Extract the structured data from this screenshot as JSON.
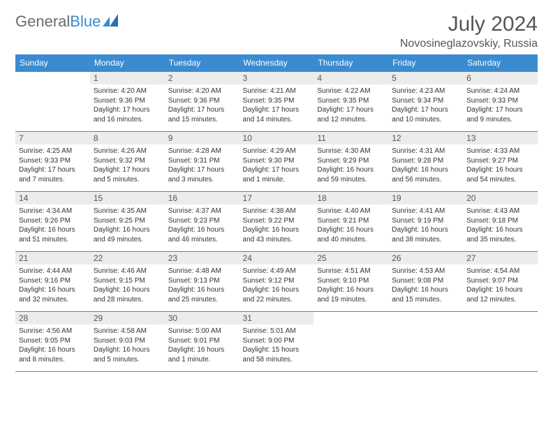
{
  "logo": {
    "text1": "General",
    "text2": "Blue"
  },
  "title": "July 2024",
  "location": "Novosineglazovskiy, Russia",
  "colors": {
    "header_bg": "#3a8bd0",
    "header_fg": "#ffffff",
    "daynum_bg": "#ececec",
    "text": "#333333",
    "border": "#3a8bd0",
    "logo_gray": "#6b6b6b",
    "logo_blue": "#3a8bd0"
  },
  "weekdays": [
    "Sunday",
    "Monday",
    "Tuesday",
    "Wednesday",
    "Thursday",
    "Friday",
    "Saturday"
  ],
  "weeks": [
    [
      null,
      {
        "n": "1",
        "sr": "4:20 AM",
        "ss": "9:36 PM",
        "dl": "17 hours and 16 minutes."
      },
      {
        "n": "2",
        "sr": "4:20 AM",
        "ss": "9:36 PM",
        "dl": "17 hours and 15 minutes."
      },
      {
        "n": "3",
        "sr": "4:21 AM",
        "ss": "9:35 PM",
        "dl": "17 hours and 14 minutes."
      },
      {
        "n": "4",
        "sr": "4:22 AM",
        "ss": "9:35 PM",
        "dl": "17 hours and 12 minutes."
      },
      {
        "n": "5",
        "sr": "4:23 AM",
        "ss": "9:34 PM",
        "dl": "17 hours and 10 minutes."
      },
      {
        "n": "6",
        "sr": "4:24 AM",
        "ss": "9:33 PM",
        "dl": "17 hours and 9 minutes."
      }
    ],
    [
      {
        "n": "7",
        "sr": "4:25 AM",
        "ss": "9:33 PM",
        "dl": "17 hours and 7 minutes."
      },
      {
        "n": "8",
        "sr": "4:26 AM",
        "ss": "9:32 PM",
        "dl": "17 hours and 5 minutes."
      },
      {
        "n": "9",
        "sr": "4:28 AM",
        "ss": "9:31 PM",
        "dl": "17 hours and 3 minutes."
      },
      {
        "n": "10",
        "sr": "4:29 AM",
        "ss": "9:30 PM",
        "dl": "17 hours and 1 minute."
      },
      {
        "n": "11",
        "sr": "4:30 AM",
        "ss": "9:29 PM",
        "dl": "16 hours and 59 minutes."
      },
      {
        "n": "12",
        "sr": "4:31 AM",
        "ss": "9:28 PM",
        "dl": "16 hours and 56 minutes."
      },
      {
        "n": "13",
        "sr": "4:33 AM",
        "ss": "9:27 PM",
        "dl": "16 hours and 54 minutes."
      }
    ],
    [
      {
        "n": "14",
        "sr": "4:34 AM",
        "ss": "9:26 PM",
        "dl": "16 hours and 51 minutes."
      },
      {
        "n": "15",
        "sr": "4:35 AM",
        "ss": "9:25 PM",
        "dl": "16 hours and 49 minutes."
      },
      {
        "n": "16",
        "sr": "4:37 AM",
        "ss": "9:23 PM",
        "dl": "16 hours and 46 minutes."
      },
      {
        "n": "17",
        "sr": "4:38 AM",
        "ss": "9:22 PM",
        "dl": "16 hours and 43 minutes."
      },
      {
        "n": "18",
        "sr": "4:40 AM",
        "ss": "9:21 PM",
        "dl": "16 hours and 40 minutes."
      },
      {
        "n": "19",
        "sr": "4:41 AM",
        "ss": "9:19 PM",
        "dl": "16 hours and 38 minutes."
      },
      {
        "n": "20",
        "sr": "4:43 AM",
        "ss": "9:18 PM",
        "dl": "16 hours and 35 minutes."
      }
    ],
    [
      {
        "n": "21",
        "sr": "4:44 AM",
        "ss": "9:16 PM",
        "dl": "16 hours and 32 minutes."
      },
      {
        "n": "22",
        "sr": "4:46 AM",
        "ss": "9:15 PM",
        "dl": "16 hours and 28 minutes."
      },
      {
        "n": "23",
        "sr": "4:48 AM",
        "ss": "9:13 PM",
        "dl": "16 hours and 25 minutes."
      },
      {
        "n": "24",
        "sr": "4:49 AM",
        "ss": "9:12 PM",
        "dl": "16 hours and 22 minutes."
      },
      {
        "n": "25",
        "sr": "4:51 AM",
        "ss": "9:10 PM",
        "dl": "16 hours and 19 minutes."
      },
      {
        "n": "26",
        "sr": "4:53 AM",
        "ss": "9:08 PM",
        "dl": "16 hours and 15 minutes."
      },
      {
        "n": "27",
        "sr": "4:54 AM",
        "ss": "9:07 PM",
        "dl": "16 hours and 12 minutes."
      }
    ],
    [
      {
        "n": "28",
        "sr": "4:56 AM",
        "ss": "9:05 PM",
        "dl": "16 hours and 8 minutes."
      },
      {
        "n": "29",
        "sr": "4:58 AM",
        "ss": "9:03 PM",
        "dl": "16 hours and 5 minutes."
      },
      {
        "n": "30",
        "sr": "5:00 AM",
        "ss": "9:01 PM",
        "dl": "16 hours and 1 minute."
      },
      {
        "n": "31",
        "sr": "5:01 AM",
        "ss": "9:00 PM",
        "dl": "15 hours and 58 minutes."
      },
      null,
      null,
      null
    ]
  ],
  "labels": {
    "sunrise": "Sunrise:",
    "sunset": "Sunset:",
    "daylight": "Daylight:"
  }
}
